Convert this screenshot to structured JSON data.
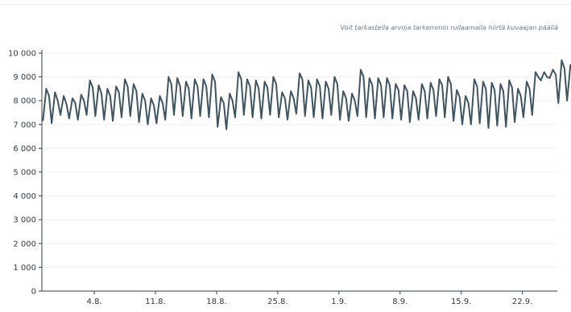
{
  "hint": "Voit tarkastella arvoja tarkemmin rullaamalla hiirtä kuvaajan päällä",
  "chart_data": {
    "type": "line",
    "title": "",
    "xlabel": "",
    "ylabel": "",
    "x_range": [
      "2024-07-29",
      "2024-09-26"
    ],
    "ylim": [
      0,
      10000
    ],
    "y_ticks": [
      0,
      1000,
      2000,
      3000,
      4000,
      5000,
      6000,
      7000,
      8000,
      9000,
      10000
    ],
    "y_tick_labels": [
      "0",
      "1 000",
      "2 000",
      "3 000",
      "4 000",
      "5 000",
      "6 000",
      "7 000",
      "8 000",
      "9 000",
      "10 000"
    ],
    "x_ticks": [
      "2024-08-04",
      "2024-08-11",
      "2024-08-18",
      "2024-08-25",
      "2024-09-01",
      "2024-09-08",
      "2024-09-15",
      "2024-09-22"
    ],
    "x_tick_labels": [
      "4.8.",
      "11.8.",
      "18.8.",
      "25.8.",
      "1.9.",
      "8.9.",
      "15.9.",
      "22.9."
    ],
    "grid": true,
    "legend": "none",
    "line_color": "#3e5563",
    "series": [
      {
        "resolution": "3 points per day (night low, day peak, evening)",
        "x_start": "2024-07-29",
        "values": [
          7150,
          8500,
          8200,
          7050,
          8350,
          8000,
          7400,
          8200,
          7850,
          7250,
          8100,
          7900,
          7200,
          8250,
          8000,
          7400,
          8850,
          8550,
          7350,
          8650,
          8300,
          7200,
          8500,
          8200,
          7150,
          8600,
          8350,
          7300,
          8900,
          8600,
          7350,
          8700,
          8400,
          7100,
          8300,
          8000,
          7000,
          8100,
          7800,
          7050,
          8200,
          7900,
          7200,
          9000,
          8700,
          7400,
          8950,
          8600,
          7350,
          8800,
          8500,
          7250,
          8900,
          8600,
          7350,
          8900,
          8600,
          7300,
          9100,
          8800,
          6900,
          8150,
          7900,
          6800,
          8300,
          8000,
          7300,
          9200,
          8900,
          7400,
          8900,
          8600,
          7300,
          8850,
          8500,
          7250,
          8800,
          8550,
          7400,
          9000,
          8700,
          7300,
          8350,
          8100,
          7200,
          8400,
          8100,
          7450,
          9150,
          8900,
          7350,
          8850,
          8550,
          7300,
          8900,
          8600,
          7250,
          8800,
          8500,
          7400,
          9000,
          8700,
          7200,
          8400,
          8100,
          7150,
          8300,
          8000,
          7350,
          9300,
          9000,
          7300,
          8950,
          8650,
          7250,
          8950,
          8650,
          7300,
          8950,
          8650,
          7250,
          8700,
          8450,
          7200,
          8650,
          8400,
          7100,
          8400,
          8100,
          7200,
          8700,
          8400,
          7250,
          8750,
          8450,
          7350,
          8900,
          8650,
          7300,
          9000,
          8700,
          7150,
          8450,
          8150,
          7000,
          8200,
          7900,
          7000,
          8900,
          8600,
          7050,
          8800,
          8500,
          6850,
          8750,
          8450,
          6950,
          8700,
          8400,
          6900,
          8850,
          8550,
          7100,
          8500,
          8200,
          7300,
          8800,
          8500,
          7400,
          9200,
          9000,
          8850,
          9200,
          9000,
          8950,
          9300,
          9100,
          7900,
          9700,
          9350,
          8000,
          9500,
          9250,
          8300,
          9800,
          9500,
          8200,
          10100,
          9800
        ]
      }
    ]
  }
}
